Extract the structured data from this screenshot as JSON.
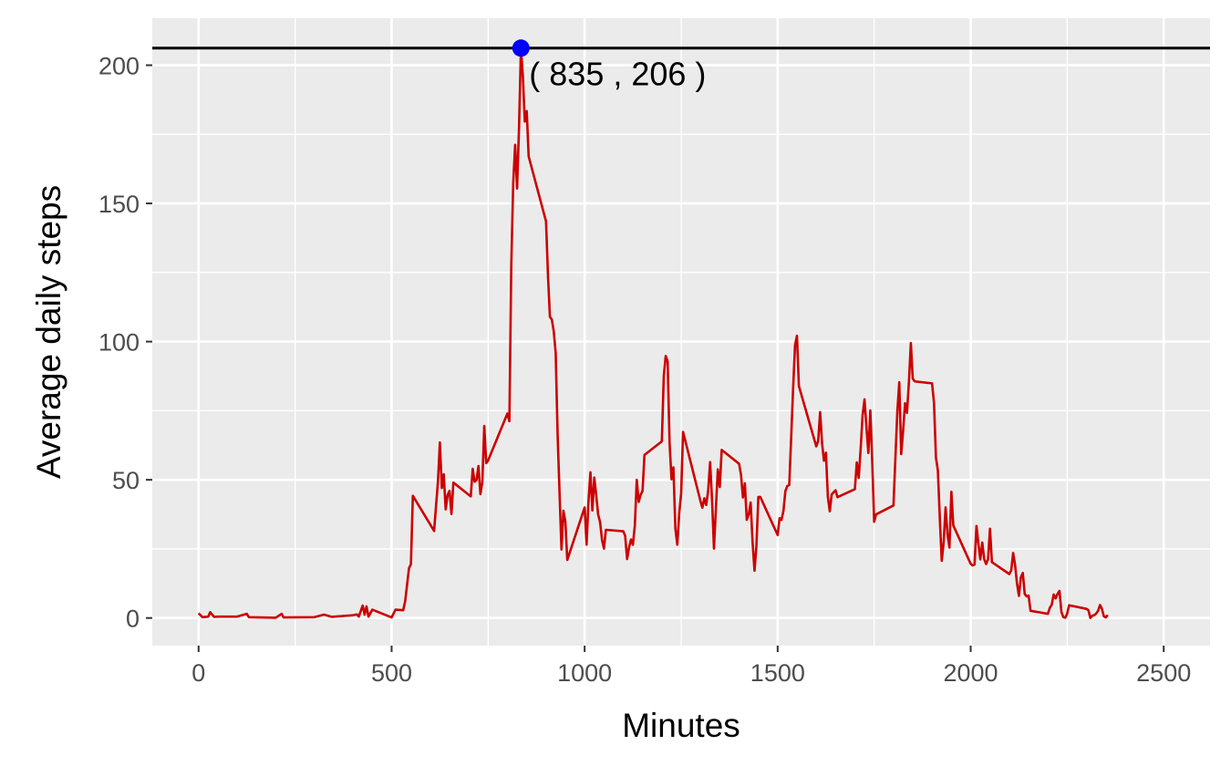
{
  "chart_data": {
    "type": "line",
    "title": "",
    "xlabel": "Minutes",
    "ylabel": "Average daily steps",
    "xlim": [
      -120,
      2620
    ],
    "ylim": [
      -10,
      217
    ],
    "x_ticks": [
      0,
      500,
      1000,
      1500,
      2000,
      2500
    ],
    "x_tick_labels": [
      "0",
      "500",
      "1000",
      "1500",
      "2000",
      "2500"
    ],
    "y_ticks": [
      0,
      50,
      100,
      150,
      200
    ],
    "y_tick_labels": [
      "0",
      "50",
      "100",
      "150",
      "200"
    ],
    "grid": true,
    "background": "#ebebeb",
    "series": [
      {
        "color": "#cc0000",
        "points": [
          [
            0,
            1.7
          ],
          [
            10,
            0.3
          ],
          [
            25,
            0.5
          ],
          [
            30,
            2.1
          ],
          [
            40,
            0.4
          ],
          [
            50,
            0.5
          ],
          [
            100,
            0.5
          ],
          [
            125,
            1.5
          ],
          [
            130,
            0.3
          ],
          [
            200,
            0.1
          ],
          [
            215,
            1.5
          ],
          [
            220,
            0.2
          ],
          [
            300,
            0.3
          ],
          [
            325,
            1.2
          ],
          [
            345,
            0.4
          ],
          [
            400,
            1.0
          ],
          [
            410,
            1.3
          ],
          [
            415,
            0.5
          ],
          [
            425,
            4.5
          ],
          [
            430,
            1.2
          ],
          [
            435,
            4.2
          ],
          [
            440,
            0.5
          ],
          [
            450,
            3.0
          ],
          [
            500,
            0.2
          ],
          [
            510,
            3.0
          ],
          [
            530,
            2.8
          ],
          [
            535,
            6.0
          ],
          [
            545,
            18.0
          ],
          [
            550,
            19.5
          ],
          [
            555,
            44.2
          ],
          [
            610,
            31.5
          ],
          [
            620,
            49.3
          ],
          [
            625,
            63.5
          ],
          [
            630,
            47.0
          ],
          [
            635,
            52.0
          ],
          [
            640,
            39.3
          ],
          [
            645,
            44.5
          ],
          [
            650,
            46.0
          ],
          [
            655,
            37.6
          ],
          [
            660,
            49.0
          ],
          [
            705,
            44.0
          ],
          [
            710,
            54.0
          ],
          [
            715,
            49.3
          ],
          [
            720,
            50.0
          ],
          [
            725,
            55.0
          ],
          [
            730,
            44.8
          ],
          [
            735,
            49.2
          ],
          [
            740,
            69.5
          ],
          [
            745,
            56.0
          ],
          [
            750,
            57.0
          ],
          [
            800,
            74.0
          ],
          [
            805,
            71.2
          ],
          [
            810,
            128.0
          ],
          [
            815,
            157.5
          ],
          [
            820,
            171.2
          ],
          [
            825,
            155.4
          ],
          [
            830,
            177.3
          ],
          [
            835,
            206.2
          ],
          [
            840,
            195.9
          ],
          [
            845,
            179.6
          ],
          [
            850,
            183.4
          ],
          [
            855,
            167.0
          ],
          [
            900,
            143.5
          ],
          [
            905,
            124.0
          ],
          [
            910,
            109.0
          ],
          [
            915,
            108.0
          ],
          [
            920,
            103.7
          ],
          [
            925,
            95.9
          ],
          [
            930,
            66.2
          ],
          [
            935,
            45.2
          ],
          [
            940,
            24.8
          ],
          [
            945,
            38.8
          ],
          [
            950,
            34.9
          ],
          [
            955,
            21.0
          ],
          [
            1000,
            40.0
          ],
          [
            1005,
            26.5
          ],
          [
            1010,
            42.4
          ],
          [
            1015,
            52.7
          ],
          [
            1020,
            38.9
          ],
          [
            1025,
            50.8
          ],
          [
            1030,
            44.3
          ],
          [
            1035,
            37.4
          ],
          [
            1040,
            34.7
          ],
          [
            1045,
            28.3
          ],
          [
            1050,
            25.1
          ],
          [
            1055,
            31.9
          ],
          [
            1100,
            31.4
          ],
          [
            1105,
            29.7
          ],
          [
            1110,
            21.3
          ],
          [
            1115,
            25.5
          ],
          [
            1120,
            28.4
          ],
          [
            1125,
            26.5
          ],
          [
            1130,
            33.4
          ],
          [
            1135,
            50.0
          ],
          [
            1140,
            42.0
          ],
          [
            1145,
            44.6
          ],
          [
            1150,
            46.0
          ],
          [
            1155,
            59.0
          ],
          [
            1200,
            63.9
          ],
          [
            1205,
            87.6
          ],
          [
            1210,
            94.8
          ],
          [
            1215,
            92.8
          ],
          [
            1220,
            63.4
          ],
          [
            1225,
            50.2
          ],
          [
            1230,
            54.5
          ],
          [
            1235,
            32.4
          ],
          [
            1240,
            26.5
          ],
          [
            1245,
            37.7
          ],
          [
            1250,
            45.1
          ],
          [
            1255,
            67.3
          ],
          [
            1300,
            42.3
          ],
          [
            1305,
            39.9
          ],
          [
            1310,
            43.3
          ],
          [
            1315,
            40.9
          ],
          [
            1320,
            46.2
          ],
          [
            1325,
            56.4
          ],
          [
            1330,
            42.8
          ],
          [
            1335,
            25.1
          ],
          [
            1340,
            39.5
          ],
          [
            1345,
            53.8
          ],
          [
            1350,
            47.4
          ],
          [
            1355,
            60.8
          ],
          [
            1400,
            55.8
          ],
          [
            1405,
            51.9
          ],
          [
            1410,
            43.6
          ],
          [
            1415,
            48.7
          ],
          [
            1420,
            35.5
          ],
          [
            1425,
            37.5
          ],
          [
            1430,
            41.8
          ],
          [
            1435,
            27.5
          ],
          [
            1440,
            17.1
          ],
          [
            1445,
            26.1
          ],
          [
            1450,
            43.8
          ],
          [
            1455,
            43.8
          ],
          [
            1500,
            30.0
          ],
          [
            1505,
            36.1
          ],
          [
            1510,
            35.5
          ],
          [
            1515,
            38.8
          ],
          [
            1520,
            45.9
          ],
          [
            1525,
            47.8
          ],
          [
            1530,
            48.1
          ],
          [
            1535,
            65.3
          ],
          [
            1540,
            82.9
          ],
          [
            1545,
            98.7
          ],
          [
            1550,
            102.1
          ],
          [
            1555,
            83.9
          ],
          [
            1600,
            62.1
          ],
          [
            1605,
            64.1
          ],
          [
            1610,
            74.5
          ],
          [
            1615,
            63.2
          ],
          [
            1620,
            56.9
          ],
          [
            1625,
            59.8
          ],
          [
            1630,
            43.9
          ],
          [
            1635,
            38.6
          ],
          [
            1640,
            44.7
          ],
          [
            1645,
            45.5
          ],
          [
            1650,
            46.2
          ],
          [
            1655,
            43.7
          ],
          [
            1700,
            46.6
          ],
          [
            1705,
            56.3
          ],
          [
            1710,
            50.7
          ],
          [
            1715,
            61.2
          ],
          [
            1720,
            73.4
          ],
          [
            1725,
            79.1
          ],
          [
            1730,
            68.9
          ],
          [
            1735,
            59.7
          ],
          [
            1740,
            75.1
          ],
          [
            1745,
            56.5
          ],
          [
            1750,
            34.8
          ],
          [
            1755,
            37.5
          ],
          [
            1800,
            40.7
          ],
          [
            1805,
            58.0
          ],
          [
            1810,
            74.7
          ],
          [
            1815,
            85.3
          ],
          [
            1820,
            59.3
          ],
          [
            1825,
            67.8
          ],
          [
            1830,
            77.7
          ],
          [
            1835,
            74.2
          ],
          [
            1840,
            85.3
          ],
          [
            1845,
            99.5
          ],
          [
            1850,
            86.6
          ],
          [
            1855,
            85.6
          ],
          [
            1900,
            84.9
          ],
          [
            1905,
            77.8
          ],
          [
            1910,
            58.0
          ],
          [
            1915,
            53.4
          ],
          [
            1920,
            36.3
          ],
          [
            1925,
            20.7
          ],
          [
            1930,
            27.4
          ],
          [
            1935,
            40.0
          ],
          [
            1940,
            30.2
          ],
          [
            1945,
            25.5
          ],
          [
            1950,
            45.7
          ],
          [
            1955,
            33.5
          ],
          [
            2000,
            19.6
          ],
          [
            2005,
            19.0
          ],
          [
            2010,
            19.3
          ],
          [
            2015,
            33.3
          ],
          [
            2020,
            26.8
          ],
          [
            2025,
            21.2
          ],
          [
            2030,
            27.3
          ],
          [
            2035,
            21.3
          ],
          [
            2040,
            19.5
          ],
          [
            2045,
            21.3
          ],
          [
            2050,
            32.3
          ],
          [
            2055,
            20.2
          ],
          [
            2100,
            15.9
          ],
          [
            2105,
            17.2
          ],
          [
            2110,
            23.5
          ],
          [
            2115,
            19.2
          ],
          [
            2120,
            12.5
          ],
          [
            2125,
            8.0
          ],
          [
            2130,
            14.7
          ],
          [
            2135,
            16.3
          ],
          [
            2140,
            8.7
          ],
          [
            2145,
            7.8
          ],
          [
            2150,
            8.1
          ],
          [
            2155,
            2.6
          ],
          [
            2200,
            1.5
          ],
          [
            2205,
            3.7
          ],
          [
            2210,
            4.8
          ],
          [
            2215,
            8.5
          ],
          [
            2220,
            7.1
          ],
          [
            2225,
            8.7
          ],
          [
            2230,
            9.8
          ],
          [
            2235,
            2.2
          ],
          [
            2240,
            0.3
          ],
          [
            2245,
            0.1
          ],
          [
            2250,
            1.6
          ],
          [
            2255,
            4.6
          ],
          [
            2300,
            3.3
          ],
          [
            2305,
            2.8
          ],
          [
            2310,
            0.0
          ],
          [
            2315,
            0.8
          ],
          [
            2320,
            1.0
          ],
          [
            2325,
            1.6
          ],
          [
            2330,
            2.6
          ],
          [
            2335,
            4.7
          ],
          [
            2340,
            3.3
          ],
          [
            2345,
            0.6
          ],
          [
            2350,
            0.2
          ],
          [
            2355,
            1.1
          ]
        ]
      }
    ],
    "hline": {
      "y": 206.2,
      "color": "#000000"
    },
    "highlight": {
      "x": 835,
      "y": 206.2,
      "color": "#0000ff",
      "label": "( 835 , 206 )"
    }
  }
}
